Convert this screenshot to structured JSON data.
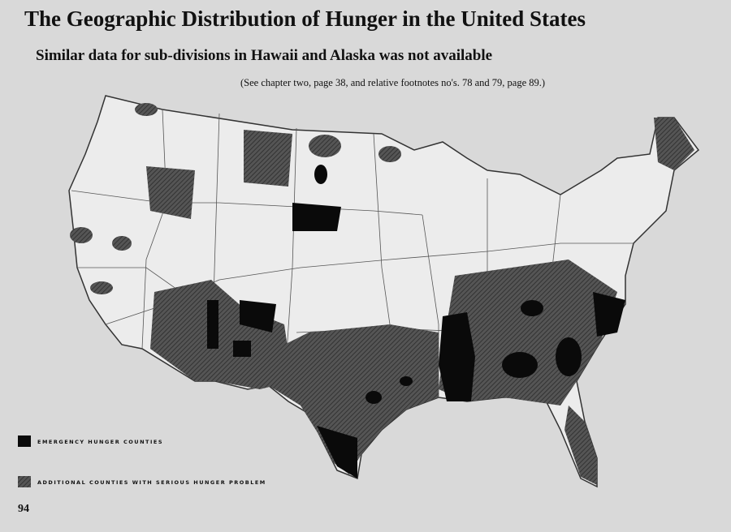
{
  "header": {
    "title": "The Geographic Distribution of Hunger in the United States",
    "subtitle": "Similar data for sub-divisions in Hawaii and Alaska was not available",
    "note": "(See chapter two, page 38, and relative footnotes no's. 78 and 79, page 89.)"
  },
  "legend": {
    "items": [
      {
        "label": "EMERGENCY HUNGER COUNTIES"
      },
      {
        "label": "ADDITIONAL COUNTIES WITH SERIOUS HUNGER PROBLEM"
      }
    ]
  },
  "page_number": "94"
}
